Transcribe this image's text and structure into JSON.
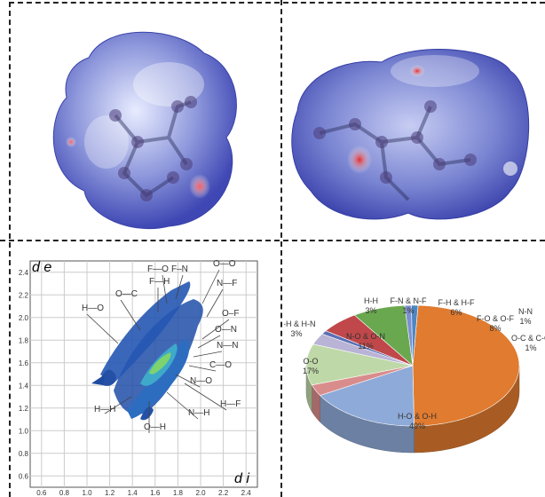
{
  "fingerprint": {
    "axis_label_x": "d i",
    "axis_label_y": "d e",
    "x_ticks": [
      "0.6",
      "0.8",
      "1.0",
      "1.2",
      "1.4",
      "1.6",
      "1.8",
      "2.0",
      "2.2",
      "2.4"
    ],
    "y_ticks": [
      "0.6",
      "0.8",
      "1.0",
      "1.2",
      "1.4",
      "1.6",
      "1.8",
      "2.0",
      "2.2",
      "2.4"
    ],
    "labels": [
      "F—O",
      "F–N",
      "O—O",
      "F—H",
      "N—F",
      "O—C",
      "H—O",
      "O–F",
      "O—N",
      "N—N",
      "C—O",
      "N—O",
      "H—F",
      "H—H",
      "N—H",
      "O—H"
    ]
  },
  "chart_data": {
    "type": "pie",
    "categories": [
      "H-O & O-H",
      "O-O",
      "N-H & H-N",
      "N-O & O-N",
      "H-H",
      "F-N & N-F",
      "F-H & H-F",
      "F-O & O-F",
      "N-N",
      "O-C & C-O"
    ],
    "values": [
      49,
      17,
      3,
      11,
      3,
      1,
      6,
      8,
      1,
      1
    ],
    "labels": [
      "49%",
      "17%",
      "3%",
      "11%",
      "3%",
      "1%",
      "6%",
      "8%",
      "1%",
      "1%"
    ],
    "colors": [
      "#e07b2f",
      "#8eaad8",
      "#d98c8c",
      "#bfd8a8",
      "#b9b3d6",
      "#5b6fb5",
      "#c0474a",
      "#6aa84f",
      "#7b8fd0",
      "#4d86c2"
    ]
  }
}
